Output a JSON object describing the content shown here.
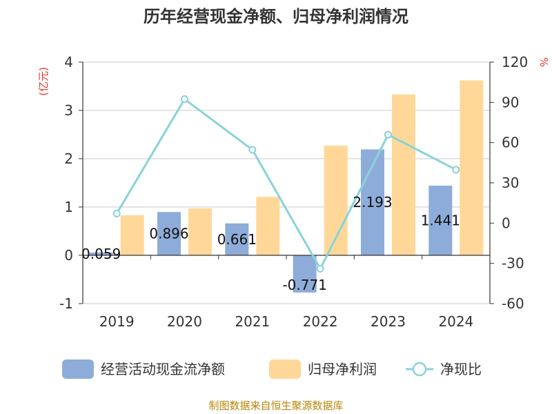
{
  "chart_data": {
    "type": "bar",
    "title": "历年经营现金净额、归母净利润情况",
    "categories": [
      "2019",
      "2020",
      "2021",
      "2022",
      "2023",
      "2024"
    ],
    "series": [
      {
        "name": "经营活动现金流净额",
        "type": "bar",
        "axis": "left",
        "color": "#8eacd9",
        "values": [
          0.059,
          0.896,
          0.661,
          -0.771,
          2.193,
          1.441
        ]
      },
      {
        "name": "归母净利润",
        "type": "bar",
        "axis": "left",
        "color": "#ffd899",
        "values": [
          0.83,
          0.97,
          1.21,
          2.27,
          3.33,
          3.62
        ]
      },
      {
        "name": "净现比",
        "type": "line",
        "axis": "right",
        "color": "#88d3d8",
        "values": [
          7.1,
          92.4,
          54.6,
          -34.0,
          65.9,
          39.8
        ]
      }
    ],
    "data_labels": [
      "0.059",
      "0.896",
      "0.661",
      "-0.771",
      "2.193",
      "1.441"
    ],
    "y_left": {
      "unit": "(亿元)",
      "ticks": [
        "4",
        "3",
        "2",
        "1",
        "0",
        "-1"
      ],
      "range": [
        -1,
        4
      ]
    },
    "y_right": {
      "unit": "%",
      "ticks": [
        "120",
        "90",
        "60",
        "30",
        "0",
        "-30",
        "-60"
      ],
      "range": [
        -60,
        120
      ]
    },
    "grid": true,
    "legend_position": "bottom",
    "source": "制图数据来自恒生聚源数据库"
  }
}
